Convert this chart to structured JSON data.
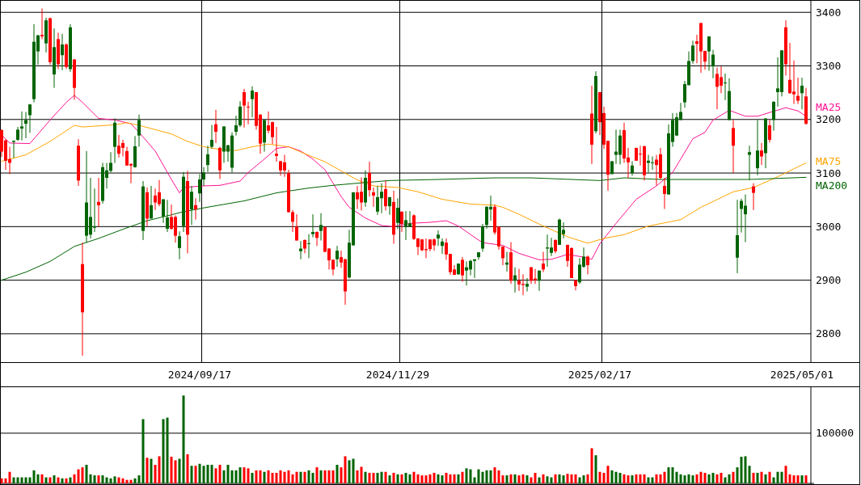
{
  "chart_data": [
    {
      "type": "candlestick",
      "categories": [
        null,
        null,
        null,
        null,
        null,
        null,
        null,
        null,
        null,
        null,
        null,
        null,
        null,
        null,
        null,
        null,
        null,
        null,
        null,
        null,
        null,
        null,
        null,
        null,
        null,
        null,
        null,
        null,
        null,
        null,
        null,
        null,
        null,
        null,
        null,
        null,
        null,
        null,
        null,
        null,
        null,
        null,
        null,
        null,
        null,
        null,
        null,
        null,
        null,
        "2024/09/17",
        null,
        null,
        null,
        null,
        null,
        null,
        null,
        null,
        null,
        null,
        null,
        null,
        null,
        null,
        null,
        null,
        null,
        null,
        null,
        null,
        null,
        null,
        null,
        null,
        null,
        null,
        null,
        null,
        null,
        null,
        null,
        null,
        null,
        null,
        null,
        null,
        null,
        null,
        null,
        null,
        null,
        null,
        null,
        null,
        null,
        null,
        null,
        null,
        "2024/11/29",
        null,
        null,
        null,
        null,
        null,
        null,
        null,
        null,
        null,
        null,
        null,
        null,
        null,
        null,
        null,
        null,
        null,
        null,
        null,
        null,
        null,
        null,
        null,
        null,
        null,
        null,
        null,
        null,
        null,
        null,
        null,
        null,
        null,
        null,
        null,
        null,
        null,
        null,
        null,
        null,
        null,
        null,
        null,
        null,
        null,
        null,
        null,
        null,
        null,
        "2025/02/17",
        null,
        null,
        null,
        null,
        null,
        null,
        null,
        null,
        null,
        null,
        null,
        null,
        null,
        null,
        null,
        null,
        null,
        null,
        null,
        null,
        null,
        null,
        null,
        null,
        null,
        null,
        null,
        null,
        null,
        null,
        null,
        null,
        null,
        null,
        null,
        null,
        null,
        null,
        null,
        null,
        null,
        null,
        null,
        null,
        null,
        null,
        null,
        null,
        null,
        "2025/05/01",
        null
      ],
      "ohlc": [
        [
          3180,
          3182,
          3130,
          3140
        ],
        [
          3161,
          3163,
          3106,
          3123
        ],
        [
          3126,
          3149,
          3098,
          3119
        ],
        [
          3158,
          3161,
          3128,
          3160
        ],
        [
          3162,
          3186,
          3160,
          3181
        ],
        [
          3183,
          3215,
          3161,
          3187
        ],
        [
          3192,
          3214,
          3165,
          3199
        ],
        [
          3208,
          3229,
          3175,
          3228
        ],
        [
          3238,
          3378,
          3232,
          3345
        ],
        [
          3327,
          3358,
          3302,
          3357
        ],
        [
          3358,
          3407,
          3350,
          3355
        ],
        [
          3342,
          3390,
          3325,
          3385
        ],
        [
          3389,
          3390,
          3302,
          3307
        ],
        [
          3284,
          3370,
          3259,
          3335
        ],
        [
          3350,
          3362,
          3294,
          3303
        ],
        [
          3320,
          3360,
          3292,
          3340
        ],
        [
          3340,
          3342,
          3294,
          3298
        ],
        [
          3294,
          3378,
          3289,
          3372
        ],
        [
          3312,
          3313,
          3237,
          3259
        ],
        [
          3151,
          3163,
          3076,
          3086
        ],
        [
          2930,
          2970,
          2759,
          2840
        ],
        [
          2983,
          3141,
          2970,
          3045
        ],
        [
          2985,
          3091,
          2978,
          3018
        ],
        [
          2998,
          3071,
          2990,
          3000
        ],
        [
          3046,
          3091,
          3000,
          3040
        ],
        [
          3048,
          3119,
          3043,
          3111
        ],
        [
          3091,
          3119,
          3071,
          3105
        ],
        [
          3104,
          3139,
          3101,
          3119
        ],
        [
          3149,
          3202,
          3119,
          3194
        ],
        [
          3151,
          3171,
          3129,
          3136
        ],
        [
          3156,
          3162,
          3131,
          3147
        ],
        [
          3141,
          3149,
          3114,
          3114
        ],
        [
          3117,
          3118,
          3081,
          3114
        ],
        [
          3111,
          3169,
          3110,
          3150
        ],
        [
          3170,
          3209,
          3149,
          3199
        ],
        [
          2992,
          3085,
          2975,
          3075
        ],
        [
          3064,
          3073,
          3001,
          3015
        ],
        [
          3015,
          3076,
          3015,
          3040
        ],
        [
          3058,
          3071,
          3031,
          3045
        ],
        [
          3064,
          3087,
          3038,
          3042
        ],
        [
          3019,
          3051,
          3007,
          3051
        ],
        [
          2996,
          3050,
          2990,
          3017
        ],
        [
          3018,
          3041,
          2994,
          2996
        ],
        [
          3018,
          3021,
          2970,
          2983
        ],
        [
          2960,
          2991,
          2939,
          2982
        ],
        [
          3001,
          3102,
          2990,
          3093
        ],
        [
          3085,
          3104,
          2950,
          2985
        ],
        [
          3032,
          3076,
          3003,
          3065
        ],
        [
          3040,
          3053,
          3013,
          3032
        ],
        [
          3062,
          3098,
          3046,
          3088
        ],
        [
          3088,
          3111,
          3076,
          3101
        ],
        [
          3115,
          3151,
          3102,
          3135
        ],
        [
          3149,
          3190,
          3146,
          3162
        ],
        [
          3191,
          3218,
          3156,
          3177
        ],
        [
          3147,
          3149,
          3089,
          3105
        ],
        [
          3140,
          3187,
          3119,
          3187
        ],
        [
          3140,
          3152,
          3121,
          3152
        ],
        [
          3110,
          3176,
          3101,
          3170
        ],
        [
          3177,
          3207,
          3170,
          3189
        ],
        [
          3189,
          3234,
          3186,
          3224
        ],
        [
          3251,
          3257,
          3185,
          3226
        ],
        [
          3224,
          3233,
          3191,
          3223
        ],
        [
          3238,
          3262,
          3204,
          3254
        ],
        [
          3251,
          3251,
          3181,
          3188
        ],
        [
          3209,
          3210,
          3136,
          3155
        ],
        [
          3157,
          3199,
          3140,
          3199
        ],
        [
          3189,
          3215,
          3174,
          3179
        ],
        [
          3195,
          3196,
          3154,
          3167
        ],
        [
          3136,
          3186,
          3121,
          3132
        ],
        [
          3122,
          3123,
          3095,
          3105
        ],
        [
          3120,
          3134,
          3093,
          3105
        ],
        [
          3100,
          3106,
          3026,
          3027
        ],
        [
          3027,
          3031,
          2990,
          3009
        ],
        [
          3000,
          3023,
          2974,
          2974
        ],
        [
          2954,
          2973,
          2939,
          2959
        ],
        [
          2975,
          2976,
          2950,
          2959
        ],
        [
          2968,
          2986,
          2941,
          2969
        ],
        [
          2986,
          3023,
          2980,
          2990
        ],
        [
          2990,
          2991,
          2964,
          2979
        ],
        [
          2992,
          3025,
          2974,
          3003
        ],
        [
          2999,
          3000,
          2952,
          2953
        ],
        [
          2959,
          2960,
          2920,
          2937
        ],
        [
          2938,
          2939,
          2909,
          2920
        ],
        [
          2939,
          2964,
          2925,
          2955
        ],
        [
          2943,
          2955,
          2923,
          2933
        ],
        [
          2939,
          2940,
          2854,
          2879
        ],
        [
          2905,
          2994,
          2903,
          2970
        ],
        [
          2965,
          3064,
          2965,
          3064
        ],
        [
          3064,
          3076,
          3033,
          3051
        ],
        [
          3065,
          3092,
          3030,
          3045
        ],
        [
          3045,
          3105,
          3037,
          3091
        ],
        [
          3100,
          3121,
          3056,
          3068
        ],
        [
          3064,
          3073,
          3037,
          3058
        ],
        [
          3028,
          3076,
          3022,
          3055
        ],
        [
          3053,
          3081,
          3025,
          3065
        ],
        [
          3070,
          3086,
          3030,
          3038
        ],
        [
          3038,
          3055,
          3022,
          3055
        ],
        [
          3046,
          3067,
          2968,
          2985
        ],
        [
          3007,
          3053,
          2995,
          3035
        ],
        [
          3028,
          3028,
          2990,
          3005
        ],
        [
          3000,
          3029,
          2975,
          3012
        ],
        [
          3000,
          3029,
          3000,
          3006
        ],
        [
          3021,
          3023,
          2975,
          2977
        ],
        [
          2978,
          2978,
          2947,
          2962
        ],
        [
          2976,
          2977,
          2954,
          2956
        ],
        [
          2958,
          2978,
          2941,
          2956
        ],
        [
          2976,
          2976,
          2954,
          2958
        ],
        [
          2976,
          2978,
          2955,
          2965
        ],
        [
          2978,
          2993,
          2964,
          2985
        ],
        [
          2964,
          2978,
          2949,
          2972
        ],
        [
          2970,
          2978,
          2938,
          2948
        ],
        [
          2949,
          2949,
          2910,
          2915
        ],
        [
          2920,
          2928,
          2910,
          2910
        ],
        [
          2911,
          2931,
          2910,
          2931
        ],
        [
          2938,
          2943,
          2897,
          2909
        ],
        [
          2918,
          2935,
          2890,
          2924
        ],
        [
          2920,
          2938,
          2909,
          2936
        ],
        [
          2936,
          2939,
          2904,
          2939
        ],
        [
          2943,
          2952,
          2938,
          2952
        ],
        [
          2959,
          3005,
          2953,
          3000
        ],
        [
          3003,
          3038,
          2996,
          3037
        ],
        [
          3032,
          3058,
          3011,
          3037
        ],
        [
          3037,
          3041,
          2985,
          2989
        ],
        [
          3000,
          3000,
          2957,
          2963
        ],
        [
          2963,
          2963,
          2928,
          2941
        ],
        [
          2929,
          2953,
          2916,
          2933
        ],
        [
          2952,
          2971,
          2893,
          2899
        ],
        [
          2899,
          2924,
          2877,
          2909
        ],
        [
          2899,
          2921,
          2880,
          2892
        ],
        [
          2893,
          2911,
          2872,
          2891
        ],
        [
          2888,
          2904,
          2879,
          2893
        ],
        [
          2924,
          2925,
          2893,
          2899
        ],
        [
          2903,
          2921,
          2893,
          2900
        ],
        [
          2899,
          2918,
          2880,
          2918
        ],
        [
          2931,
          2953,
          2915,
          2920
        ],
        [
          2959,
          2985,
          2925,
          2961
        ],
        [
          2951,
          2979,
          2945,
          2961
        ],
        [
          2975,
          2976,
          2950,
          2954
        ],
        [
          2966,
          3015,
          2966,
          3013
        ],
        [
          2986,
          3008,
          2978,
          2994
        ],
        [
          2966,
          2966,
          2925,
          2936
        ],
        [
          2960,
          2961,
          2904,
          2904
        ],
        [
          2900,
          2900,
          2881,
          2889
        ],
        [
          2896,
          2941,
          2893,
          2929
        ],
        [
          2925,
          2961,
          2923,
          2944
        ],
        [
          2944,
          2946,
          2911,
          2928
        ],
        [
          3211,
          3263,
          3117,
          3153
        ],
        [
          3178,
          3290,
          3174,
          3281
        ],
        [
          3251,
          3251,
          3171,
          3195
        ],
        [
          3212,
          3224,
          3145,
          3153
        ],
        [
          3160,
          3160,
          3067,
          3097
        ],
        [
          3098,
          3122,
          3098,
          3122
        ],
        [
          3134,
          3181,
          3117,
          3140
        ],
        [
          3134,
          3181,
          3116,
          3170
        ],
        [
          3180,
          3194,
          3119,
          3127
        ],
        [
          3129,
          3147,
          3091,
          3120
        ],
        [
          3100,
          3122,
          3095,
          3114
        ],
        [
          3147,
          3147,
          3123,
          3123
        ],
        [
          3136,
          3151,
          3114,
          3135
        ],
        [
          3150,
          3151,
          3086,
          3096
        ],
        [
          3119,
          3134,
          3101,
          3123
        ],
        [
          3119,
          3131,
          3106,
          3120
        ],
        [
          3125,
          3134,
          3077,
          3115
        ],
        [
          3135,
          3147,
          3088,
          3091
        ],
        [
          3076,
          3091,
          3033,
          3061
        ],
        [
          3060,
          3191,
          3060,
          3174
        ],
        [
          3158,
          3212,
          3149,
          3199
        ],
        [
          3170,
          3212,
          3169,
          3204
        ],
        [
          3199,
          3231,
          3199,
          3214
        ],
        [
          3232,
          3272,
          3222,
          3266
        ],
        [
          3264,
          3327,
          3264,
          3309
        ],
        [
          3309,
          3347,
          3304,
          3338
        ],
        [
          3346,
          3358,
          3305,
          3341
        ],
        [
          3380,
          3380,
          3287,
          3327
        ],
        [
          3328,
          3328,
          3293,
          3308
        ],
        [
          3327,
          3355,
          3291,
          3355
        ],
        [
          3299,
          3330,
          3277,
          3321
        ],
        [
          3285,
          3297,
          3219,
          3261
        ],
        [
          3279,
          3299,
          3249,
          3263
        ],
        [
          3268,
          3286,
          3236,
          3269
        ],
        [
          3199,
          3277,
          3199,
          3253
        ],
        [
          3184,
          3199,
          3100,
          3151
        ],
        [
          2942,
          3050,
          2913,
          2984
        ],
        [
          3033,
          3052,
          2989,
          3048
        ],
        [
          3023,
          3060,
          2971,
          3039
        ],
        [
          3134,
          3151,
          3087,
          3139
        ],
        [
          3075,
          3081,
          3031,
          3063
        ],
        [
          3109,
          3199,
          3096,
          3142
        ],
        [
          3142,
          3156,
          3115,
          3131
        ],
        [
          3137,
          3202,
          3109,
          3202
        ],
        [
          3189,
          3199,
          3157,
          3162
        ],
        [
          3199,
          3234,
          3179,
          3233
        ],
        [
          3251,
          3316,
          3224,
          3258
        ],
        [
          3251,
          3329,
          3243,
          3329
        ],
        [
          3372,
          3385,
          3282,
          3303
        ],
        [
          3274,
          3343,
          3248,
          3249
        ],
        [
          3252,
          3310,
          3229,
          3247
        ],
        [
          3244,
          3278,
          3229,
          3235
        ],
        [
          3249,
          3278,
          3219,
          3263
        ],
        [
          3243,
          3259,
          3190,
          3192
        ]
      ],
      "series": [
        {
          "type": "line",
          "name": "MA25",
          "color": "#ff1493",
          "values": [
            3171,
            null,
            3156,
            null,
            null,
            null,
            null,
            3155,
            null,
            null,
            null,
            null,
            3199,
            null,
            null,
            null,
            3232,
            null,
            3245,
            null,
            3232,
            null,
            null,
            null,
            3202,
            null,
            null,
            null,
            3199,
            null,
            null,
            null,
            3192,
            null,
            3176,
            null,
            null,
            null,
            3141,
            null,
            null,
            null,
            3088,
            null,
            3063,
            3073,
            null,
            null,
            null,
            null,
            3076,
            null,
            null,
            null,
            3077,
            null,
            null,
            null,
            null,
            3085,
            null,
            3101,
            null,
            null,
            null,
            3126,
            null,
            null,
            3146,
            null,
            null,
            3149,
            null,
            null,
            3141,
            null,
            null,
            3126,
            null,
            null,
            3106,
            null,
            null,
            null,
            3056,
            null,
            3036,
            null,
            null,
            null,
            3016,
            null,
            null,
            null,
            3002,
            null,
            null,
            3000,
            null,
            null,
            null,
            3006,
            null,
            null,
            null,
            null,
            3008,
            null,
            null,
            null,
            3011,
            null,
            null,
            3001,
            null,
            null,
            null,
            2980,
            null,
            2970,
            null,
            null,
            null,
            null,
            2965,
            null,
            null,
            null,
            2950,
            null,
            null,
            null,
            null,
            2938,
            null,
            null,
            2939,
            null,
            null,
            null,
            2948,
            null,
            null,
            null,
            2943,
            null,
            2939,
            null,
            2968,
            null,
            null,
            null,
            3006,
            null,
            null,
            null,
            null,
            3051,
            null,
            null,
            null,
            null,
            3076,
            null,
            null,
            null,
            3101,
            null,
            null,
            null,
            null,
            3164,
            null,
            null,
            3176,
            null,
            3199,
            null,
            null,
            null,
            3217,
            null,
            null,
            null,
            3206,
            null,
            null,
            3206,
            null,
            null,
            3213,
            null,
            null,
            null,
            3222,
            null,
            null,
            3216,
            null,
            3206
          ]
        },
        {
          "type": "line",
          "name": "MA75",
          "color": "#ffa500",
          "values": [
            3122,
            null,
            null,
            null,
            null,
            null,
            3134,
            null,
            null,
            null,
            null,
            null,
            3159,
            null,
            null,
            null,
            null,
            null,
            3189,
            null,
            3186,
            null,
            null,
            null,
            null,
            null,
            null,
            null,
            3190,
            null,
            null,
            3194,
            null,
            null,
            3189,
            null,
            null,
            null,
            null,
            null,
            null,
            null,
            3173,
            null,
            null,
            null,
            3159,
            null,
            null,
            null,
            3149,
            null,
            null,
            null,
            3144,
            null,
            null,
            null,
            3142,
            null,
            null,
            null,
            3149,
            null,
            null,
            null,
            3154,
            null,
            null,
            null,
            null,
            3149,
            null,
            null,
            null,
            3136,
            null,
            null,
            null,
            null,
            3121,
            null,
            null,
            null,
            3104,
            null,
            null,
            null,
            3087,
            null,
            null,
            null,
            3076,
            null,
            null,
            null,
            null,
            null,
            3073,
            null,
            null,
            null,
            null,
            3065,
            null,
            null,
            null,
            null,
            null,
            3051,
            null,
            null,
            null,
            null,
            null,
            null,
            3042,
            null,
            null,
            null,
            null,
            null,
            3040,
            null,
            3036,
            null,
            null,
            null,
            3023,
            null,
            null,
            null,
            null,
            null,
            3001,
            null,
            null,
            null,
            null,
            null,
            2981,
            null,
            null,
            null,
            null,
            2969,
            null,
            null,
            null,
            2978,
            null,
            null,
            null,
            null,
            2985,
            null,
            null,
            null,
            null,
            null,
            3001,
            null,
            null,
            null,
            null,
            null,
            null,
            null,
            3013,
            null,
            null,
            null,
            null,
            3036,
            null,
            null,
            null,
            null,
            null,
            null,
            null,
            3065,
            null,
            null,
            null,
            null,
            3073,
            null,
            null,
            null,
            null,
            null,
            3093,
            null,
            null,
            null,
            null,
            null,
            null,
            3119
          ]
        },
        {
          "type": "line",
          "name": "MA200",
          "color": "#006400",
          "values": [
            2900,
            null,
            null,
            null,
            null,
            null,
            2915,
            null,
            null,
            null,
            null,
            null,
            2935,
            null,
            null,
            null,
            null,
            null,
            2963,
            null,
            null,
            null,
            null,
            null,
            2978,
            null,
            null,
            null,
            null,
            null,
            2995,
            null,
            null,
            null,
            null,
            null,
            3011,
            null,
            null,
            null,
            null,
            null,
            3022,
            null,
            3026,
            null,
            null,
            null,
            null,
            null,
            3035,
            null,
            null,
            null,
            null,
            null,
            null,
            null,
            null,
            null,
            3048,
            null,
            null,
            null,
            null,
            null,
            null,
            null,
            3063,
            null,
            null,
            null,
            null,
            null,
            null,
            null,
            3072,
            null,
            null,
            null,
            null,
            null,
            3077,
            null,
            null,
            null,
            null,
            null,
            3081,
            null,
            null,
            null,
            null,
            null,
            null,
            null,
            3086,
            null,
            null,
            null,
            null,
            null,
            null,
            null,
            null,
            null,
            null,
            null,
            3088,
            null,
            null,
            null,
            null,
            null,
            null,
            null,
            null,
            null,
            null,
            null,
            null,
            null,
            3091,
            null,
            null,
            null,
            null,
            null,
            null,
            null,
            null,
            3091,
            null,
            null,
            null,
            null,
            null,
            null,
            null,
            null,
            null,
            3088,
            null,
            null,
            null,
            null,
            null,
            null,
            3086,
            null,
            null,
            null,
            null,
            null,
            3091,
            null,
            null,
            null,
            null,
            null,
            null,
            null,
            null,
            3088,
            null,
            null,
            null,
            null,
            null,
            null,
            3088,
            null,
            null,
            null,
            null,
            null,
            null,
            null,
            null,
            null,
            null,
            null,
            null,
            null,
            null,
            3088,
            null,
            null,
            null,
            null,
            null,
            null,
            null,
            null,
            null,
            null,
            null,
            null,
            null,
            3092
          ]
        }
      ],
      "ylim": [
        2747,
        3423
      ],
      "yticks": [
        2800,
        2900,
        3000,
        3100,
        3200,
        3300,
        3400
      ],
      "grid": true
    },
    {
      "type": "bar",
      "categories": [
        null,
        null,
        null,
        null,
        null,
        null,
        null,
        null,
        null,
        null,
        null,
        null,
        null,
        null,
        null,
        null,
        null,
        null,
        null,
        null,
        null,
        null,
        null,
        null,
        null,
        null,
        null,
        null,
        null,
        null,
        null,
        null,
        null,
        null,
        null,
        null,
        null,
        null,
        null,
        null,
        null,
        null,
        null,
        null,
        null,
        null,
        null,
        null,
        null,
        null,
        null,
        null,
        null,
        null,
        null,
        null,
        null,
        null,
        null,
        null,
        null,
        null,
        null,
        null,
        null,
        null,
        null,
        null,
        null,
        null,
        null,
        null,
        null,
        null,
        null,
        null,
        null,
        null,
        null,
        null,
        null,
        null,
        null,
        null,
        null,
        null,
        null,
        null,
        null,
        null,
        null,
        null,
        null,
        null,
        null,
        null,
        null,
        null,
        null,
        null,
        null,
        null,
        null,
        null,
        null,
        null,
        null,
        null,
        null,
        null,
        null,
        null,
        null,
        null,
        null,
        null,
        null,
        null,
        null,
        null,
        null,
        null,
        null,
        null,
        null,
        null,
        null,
        null,
        null,
        null,
        null,
        null,
        null,
        null,
        null,
        null,
        null,
        null,
        null,
        null,
        null,
        null,
        null,
        null,
        null,
        null,
        null,
        null,
        null,
        null,
        null,
        null,
        null,
        null,
        null,
        null,
        null,
        null,
        null,
        null,
        null,
        null,
        null,
        null,
        null,
        null,
        null,
        null,
        null,
        null,
        null,
        null,
        null,
        null,
        null,
        null,
        null,
        null,
        null,
        null,
        null,
        null,
        null,
        null,
        null,
        null,
        null,
        null,
        null,
        null,
        null,
        null,
        null,
        null,
        null,
        null,
        null,
        null,
        null,
        null
      ],
      "values": [
        10000,
        10000,
        23000,
        12000,
        12000,
        12000,
        12000,
        12000,
        26000,
        18000,
        18000,
        12000,
        12000,
        16000,
        12000,
        10000,
        10000,
        12000,
        18000,
        28000,
        32000,
        37000,
        18000,
        16000,
        16000,
        16000,
        12000,
        10000,
        14000,
        12000,
        10000,
        7000,
        7000,
        10000,
        16000,
        128000,
        51000,
        49000,
        37000,
        54000,
        128000,
        131000,
        53000,
        46000,
        49000,
        175000,
        58000,
        35000,
        35000,
        39000,
        35000,
        37000,
        37000,
        30000,
        37000,
        26000,
        37000,
        26000,
        26000,
        32000,
        32000,
        30000,
        21000,
        26000,
        26000,
        23000,
        26000,
        21000,
        21000,
        26000,
        23000,
        26000,
        18000,
        23000,
        23000,
        23000,
        26000,
        21000,
        32000,
        26000,
        26000,
        26000,
        26000,
        37000,
        32000,
        54000,
        46000,
        49000,
        26000,
        33000,
        23000,
        21000,
        21000,
        21000,
        23000,
        23000,
        16000,
        21000,
        18000,
        18000,
        21000,
        18000,
        23000,
        18000,
        16000,
        16000,
        18000,
        21000,
        18000,
        16000,
        21000,
        18000,
        18000,
        18000,
        23000,
        30000,
        28000,
        12000,
        28000,
        23000,
        26000,
        26000,
        32000,
        26000,
        16000,
        16000,
        18000,
        18000,
        16000,
        18000,
        16000,
        12000,
        21000,
        12000,
        18000,
        14000,
        12000,
        18000,
        18000,
        16000,
        19000,
        18000,
        18000,
        12000,
        16000,
        18000,
        70000,
        56000,
        23000,
        21000,
        35000,
        26000,
        23000,
        21000,
        18000,
        16000,
        16000,
        18000,
        18000,
        18000,
        12000,
        12000,
        18000,
        18000,
        23000,
        32000,
        32000,
        23000,
        18000,
        16000,
        18000,
        16000,
        18000,
        23000,
        21000,
        18000,
        21000,
        18000,
        21000,
        12000,
        18000,
        23000,
        32000,
        53000,
        54000,
        35000,
        21000,
        21000,
        23000,
        18000,
        23000,
        12000,
        23000,
        23000,
        35000,
        18000,
        16000,
        16000,
        16000,
        16000
      ],
      "ylim": [
        0,
        190000
      ],
      "yticks": [
        {
          "value": 0,
          "label": null
        },
        100000
      ],
      "grid": "y"
    }
  ]
}
